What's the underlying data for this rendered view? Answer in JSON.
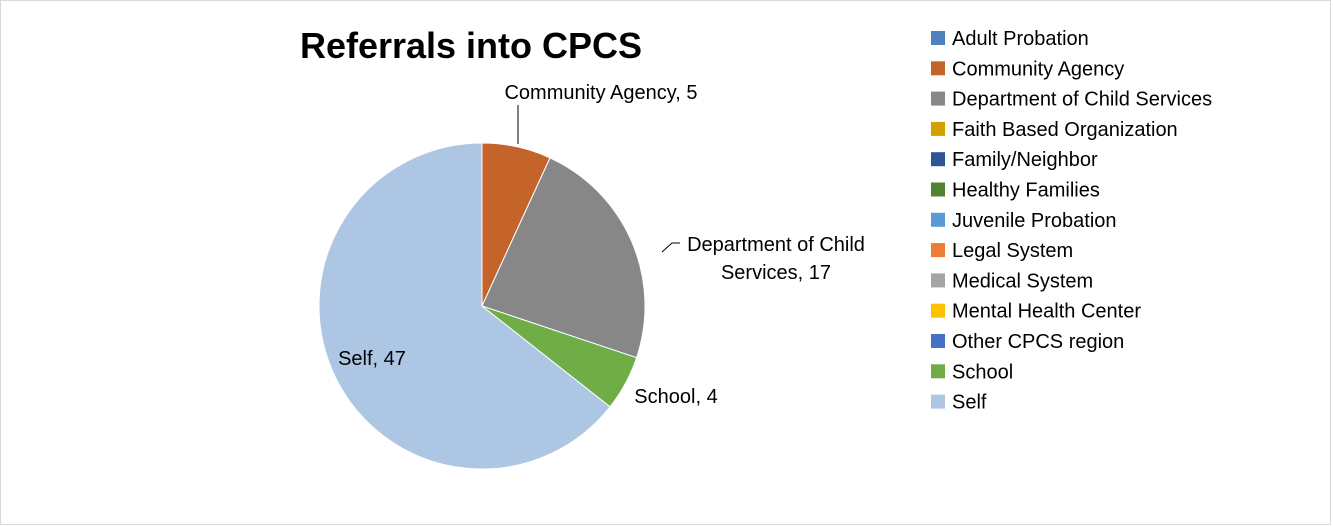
{
  "chart_data": {
    "type": "pie",
    "title": "Referrals into CPCS",
    "legend_position": "right",
    "categories": [
      "Adult Probation",
      "Community Agency",
      "Department of Child Services",
      "Faith Based Organization",
      "Family/Neighbor",
      "Healthy Families",
      "Juvenile Probation",
      "Legal System",
      "Medical System",
      "Mental Health Center",
      "Other CPCS region",
      "School",
      "Self"
    ],
    "values": [
      0,
      5,
      17,
      0,
      0,
      0,
      0,
      0,
      0,
      0,
      0,
      4,
      47
    ],
    "colors": [
      "#4E81BD",
      "#C5642A",
      "#878787",
      "#D2A000",
      "#2F5497",
      "#548235",
      "#5B9BD5",
      "#ED7D31",
      "#A5A5A5",
      "#FFC000",
      "#4472C4",
      "#70AD47",
      "#ADC6E4"
    ],
    "data_labels": [
      {
        "category": "Community Agency",
        "lines": [
          "Community Agency, 5"
        ]
      },
      {
        "category": "Department of Child Services",
        "lines": [
          "Department of Child",
          "Services, 17"
        ]
      },
      {
        "category": "School",
        "lines": [
          "School, 4"
        ]
      },
      {
        "category": "Self",
        "lines": [
          "Self, 47"
        ]
      }
    ]
  }
}
